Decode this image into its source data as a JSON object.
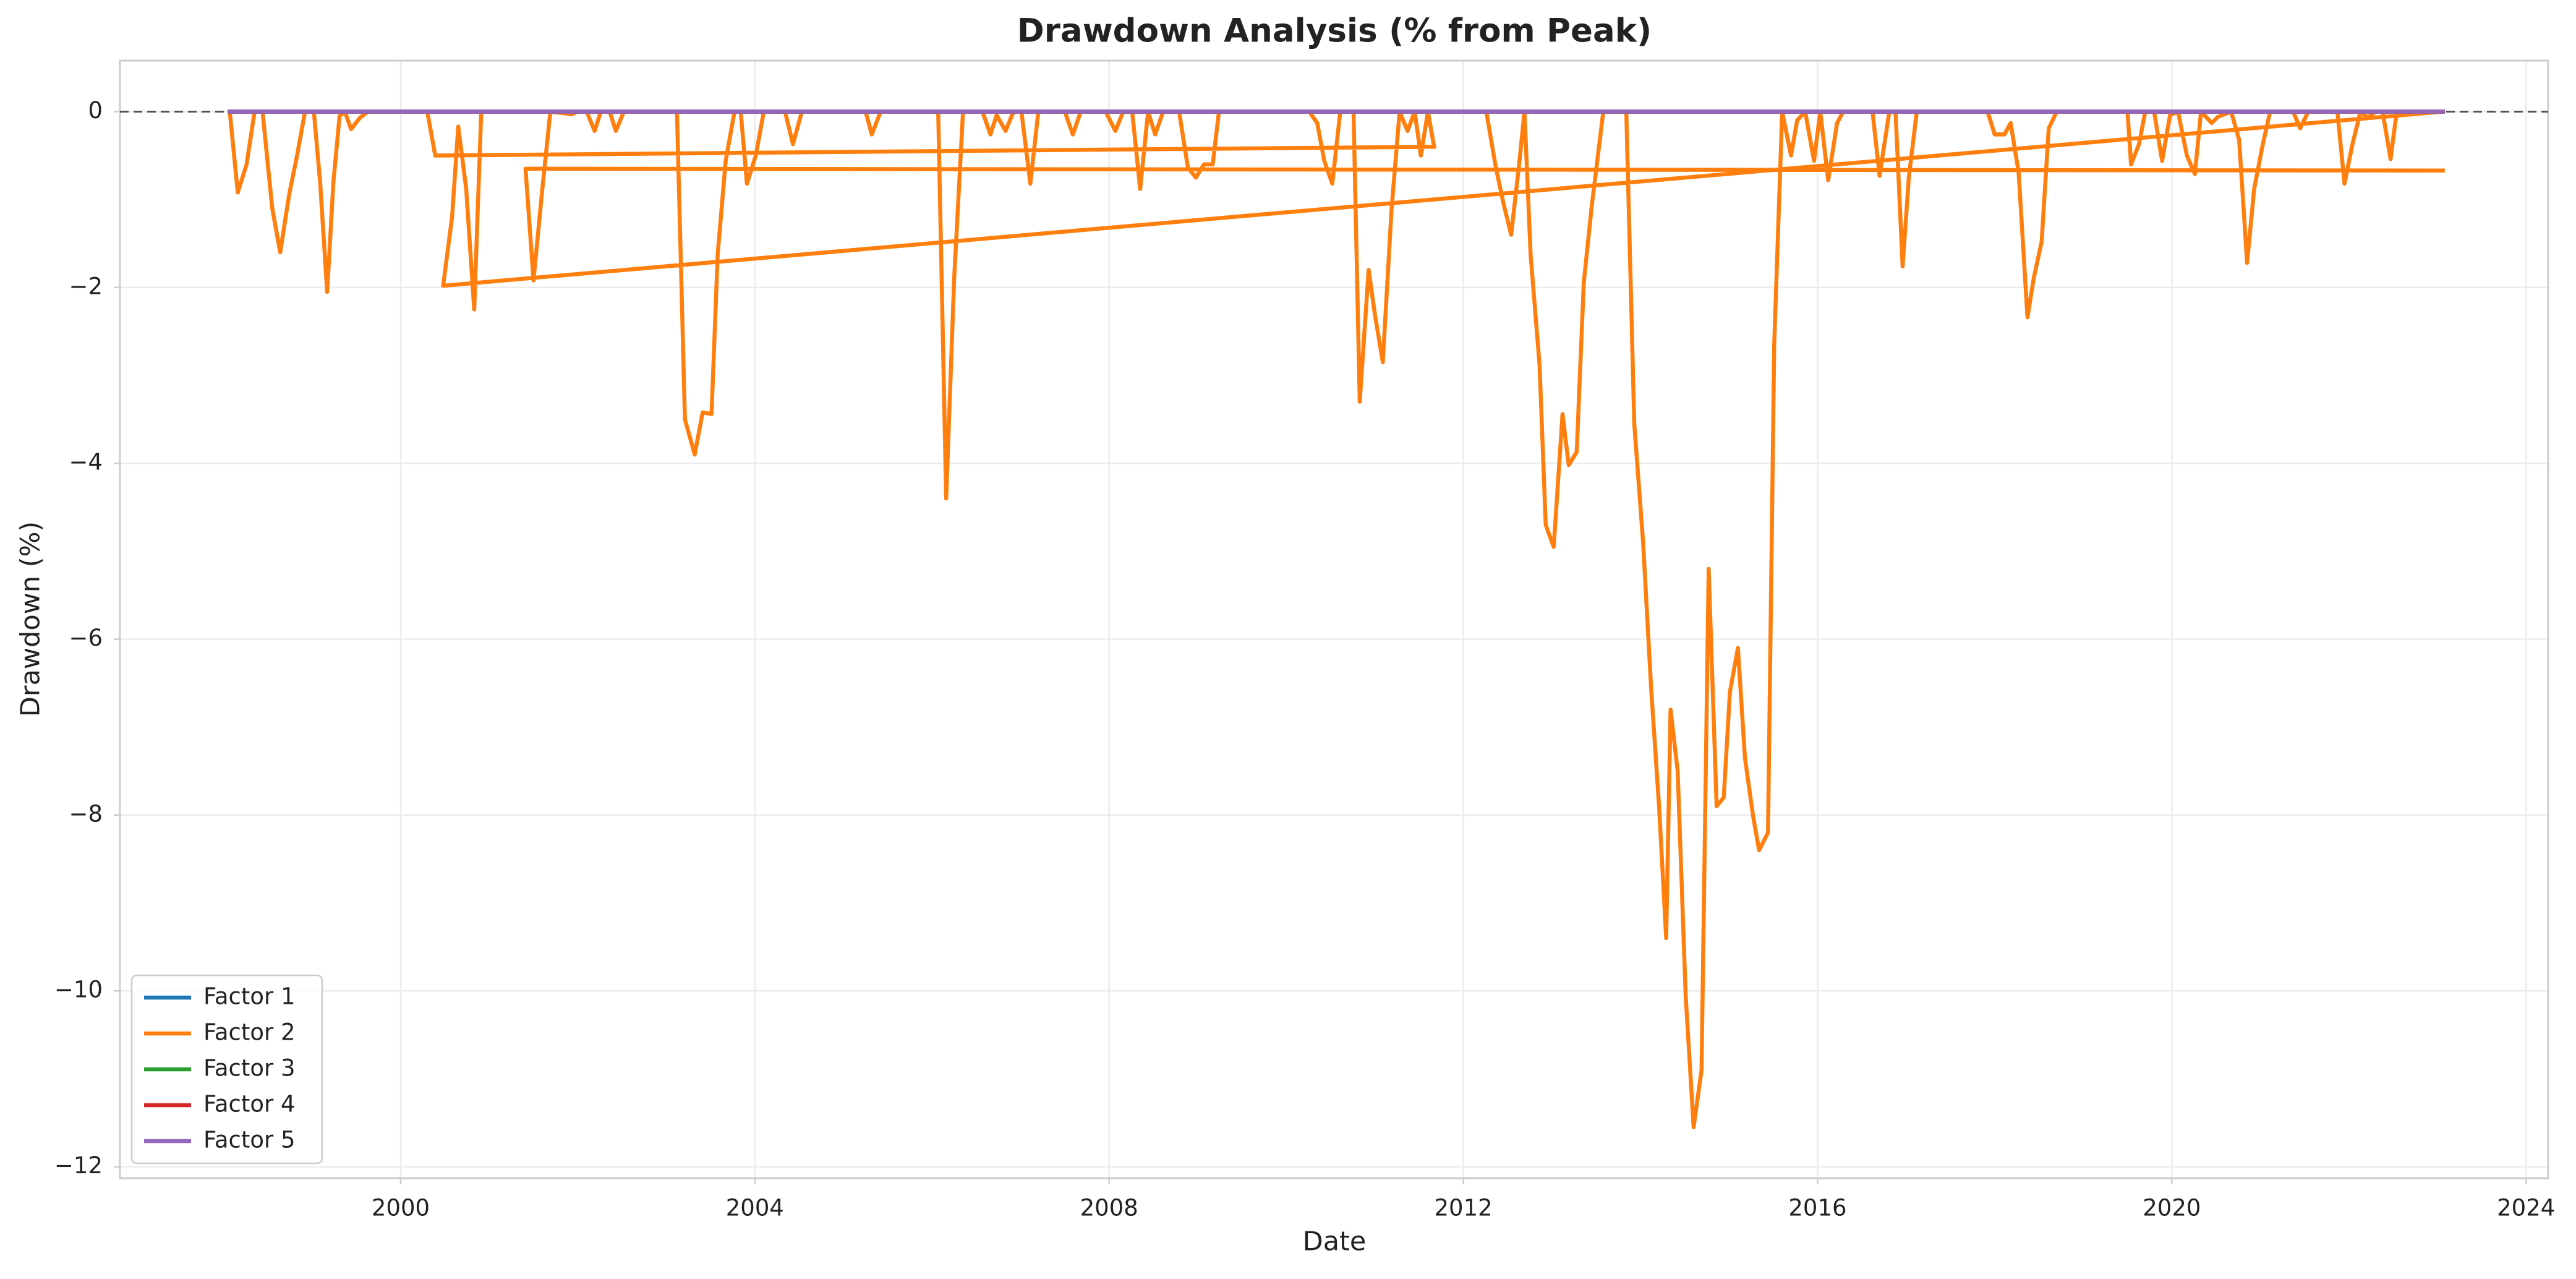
{
  "chart_data": {
    "type": "line",
    "title": "Drawdown Analysis (% from Peak)",
    "x_label": "Date",
    "y_label": "Drawdown (%)",
    "xlim": [
      1996.83,
      2024.25
    ],
    "ylim": [
      -12.13,
      0.58
    ],
    "xticks": [
      2000,
      2004,
      2008,
      2012,
      2016,
      2020,
      2024
    ],
    "yticks": [
      {
        "value": -12,
        "label": "−12"
      },
      {
        "value": -10,
        "label": "−10"
      },
      {
        "value": -8,
        "label": "−8"
      },
      {
        "value": -6,
        "label": "−6"
      },
      {
        "value": -4,
        "label": "−4"
      },
      {
        "value": -2,
        "label": "−2"
      },
      0
    ],
    "grid": true,
    "legend": "lower left",
    "reference_line": {
      "y": 0,
      "style": "dashed",
      "color": "#555555"
    },
    "series": [
      {
        "name": "Factor 1",
        "color": "#1f77b4",
        "x": [
          1998.07,
          2023.06
        ],
        "values": [
          0,
          0
        ]
      },
      {
        "name": "Factor 2",
        "color": "#ff7f0e",
        "x": [
          1998.07,
          1998.16,
          1998.26,
          1998.35,
          1998.44,
          1998.55,
          1998.64,
          1998.74,
          1998.83,
          1998.92,
          1999.02,
          1999.09,
          1999.17,
          1999.24,
          1999.31,
          1999.37,
          1999.44,
          1999.54,
          1999.63,
          2000.3,
          2000.39,
          2011.67,
          null,
          2023.06,
          2001.41,
          2001.5,
          2001.6,
          2001.69,
          2001.93,
          2002.0,
          2002.1,
          2002.19,
          2002.26,
          2002.36,
          2002.43,
          2002.52,
          2003.12,
          2003.21,
          2003.32,
          2003.41,
          2003.51,
          2003.58,
          2003.67,
          2003.77,
          2003.84,
          2003.91,
          2004.01,
          2004.1,
          2004.34,
          2004.43,
          2004.53,
          2005.25,
          2005.32,
          2005.42,
          2006.07,
          2006.16,
          2006.25,
          2006.35,
          2006.57,
          2006.66,
          2006.73,
          2006.83,
          2006.92,
          2007.01,
          2007.11,
          2007.2,
          2007.5,
          2007.59,
          2007.68,
          2007.96,
          2008.07,
          2008.16,
          2008.26,
          2008.35,
          2008.44,
          2008.52,
          2008.61,
          2008.79,
          2008.89,
          2008.98,
          2009.07,
          2009.17,
          2009.24,
          2010.26,
          2010.35,
          2010.43,
          2010.52,
          2010.61,
          2010.76,
          2010.83,
          2010.93,
          2011.0,
          2011.09,
          2011.19,
          2011.28,
          2011.37,
          2011.45,
          2011.52,
          2011.6,
          2011.67,
          null,
          2012.26,
          2012.36,
          2012.45,
          2012.54,
          2012.63,
          2012.69,
          2012.76,
          2012.86,
          2012.93,
          2013.02,
          2013.12,
          2013.19,
          2013.28,
          2013.36,
          2013.45,
          2013.58,
          2013.84,
          2013.93,
          2014.03,
          2014.12,
          2014.21,
          2014.29,
          2014.34,
          2014.42,
          2014.51,
          2014.6,
          2014.69,
          2014.77,
          2014.86,
          2014.94,
          2015.01,
          2015.1,
          2015.18,
          2015.27,
          2015.34,
          2015.44,
          2015.51,
          2015.6,
          2015.7,
          2015.77,
          2015.86,
          2015.96,
          2016.03,
          2016.12,
          2016.22,
          2016.29,
          2016.62,
          2016.7,
          2016.81,
          2016.88,
          2016.96,
          2017.03,
          2017.12,
          2017.92,
          2018.0,
          2018.11,
          2018.18,
          2018.27,
          2018.37,
          2018.44,
          2018.53,
          2018.61,
          2018.7,
          2019.5,
          2019.54,
          2019.63,
          2019.7,
          2019.8,
          2019.89,
          2019.98,
          2020.07,
          2020.17,
          2020.26,
          2020.33,
          2020.45,
          2020.52,
          2020.67,
          2020.76,
          2020.85,
          2020.93,
          2021.02,
          2021.11,
          2021.37,
          2021.45,
          2021.54,
          2021.87,
          2021.95,
          2022.04,
          2022.13,
          2022.21,
          2022.3,
          2022.38,
          2022.47,
          2022.54,
          2023.06,
          2000.48,
          2000.58,
          2000.65,
          2000.74,
          2000.83,
          2000.91
        ],
        "values": [
          0,
          -0.92,
          -0.6,
          0,
          0,
          -1.1,
          -1.6,
          -0.95,
          -0.5,
          0,
          0,
          -0.8,
          -2.05,
          -0.8,
          -0.05,
          0,
          -0.2,
          -0.07,
          0,
          0,
          -0.5,
          -0.4,
          null,
          -0.67,
          -0.65,
          -1.92,
          -0.88,
          0,
          -0.03,
          0,
          0,
          -0.22,
          0,
          0,
          -0.22,
          0,
          0,
          -3.5,
          -3.9,
          -3.42,
          -3.44,
          -1.62,
          -0.56,
          0,
          0,
          -0.82,
          -0.5,
          0,
          0,
          -0.37,
          0,
          0,
          -0.26,
          0,
          0,
          -4.4,
          -1.9,
          0,
          0,
          -0.26,
          -0.04,
          -0.22,
          0,
          0,
          -0.82,
          0,
          0,
          -0.26,
          0,
          0,
          -0.22,
          0,
          0,
          -0.88,
          0,
          -0.26,
          0,
          0,
          -0.64,
          -0.75,
          -0.6,
          -0.6,
          0,
          0,
          -0.13,
          -0.56,
          -0.82,
          0,
          0,
          -3.3,
          -1.8,
          -2.3,
          -2.85,
          -1.1,
          0,
          -0.22,
          0,
          -0.5,
          0,
          -0.4,
          null,
          0,
          -0.6,
          -1.03,
          -1.4,
          -0.6,
          0,
          -1.63,
          -2.88,
          -4.7,
          -4.95,
          -3.44,
          -4.02,
          -3.87,
          -1.94,
          -1.07,
          0,
          0,
          -3.55,
          -4.9,
          -6.55,
          -7.9,
          -9.4,
          -6.8,
          -7.5,
          -10.05,
          -11.55,
          -10.9,
          -5.2,
          -7.9,
          -7.8,
          -6.6,
          -6.1,
          -7.35,
          -8.0,
          -8.4,
          -8.2,
          -2.65,
          0,
          -0.5,
          -0.1,
          0,
          -0.56,
          0,
          -0.78,
          -0.13,
          0,
          0,
          -0.73,
          0,
          0,
          -1.76,
          -0.75,
          0,
          0,
          -0.26,
          -0.26,
          -0.13,
          -0.69,
          -2.34,
          -1.9,
          -1.48,
          -0.19,
          0,
          0,
          -0.6,
          -0.37,
          0,
          0,
          -0.56,
          -0.04,
          0,
          -0.5,
          -0.71,
          0,
          -0.13,
          -0.06,
          0,
          -0.32,
          -1.72,
          -0.88,
          -0.41,
          0,
          0,
          -0.19,
          0,
          0,
          -0.82,
          -0.37,
          0,
          -0.07,
          0,
          0,
          -0.54,
          0,
          0,
          -1.98,
          -1.2,
          -0.17,
          -0.88,
          -2.25,
          0
        ]
      },
      {
        "name": "Factor 3",
        "color": "#2ca02c",
        "x": [
          1998.07,
          2023.06
        ],
        "values": [
          0,
          0
        ]
      },
      {
        "name": "Factor 4",
        "color": "#d62728",
        "x": [
          1998.07,
          2023.06
        ],
        "values": [
          0,
          0
        ]
      },
      {
        "name": "Factor 5",
        "color": "#9467bd",
        "x": [
          1998.07,
          2023.06
        ],
        "values": [
          0,
          0
        ]
      }
    ]
  }
}
